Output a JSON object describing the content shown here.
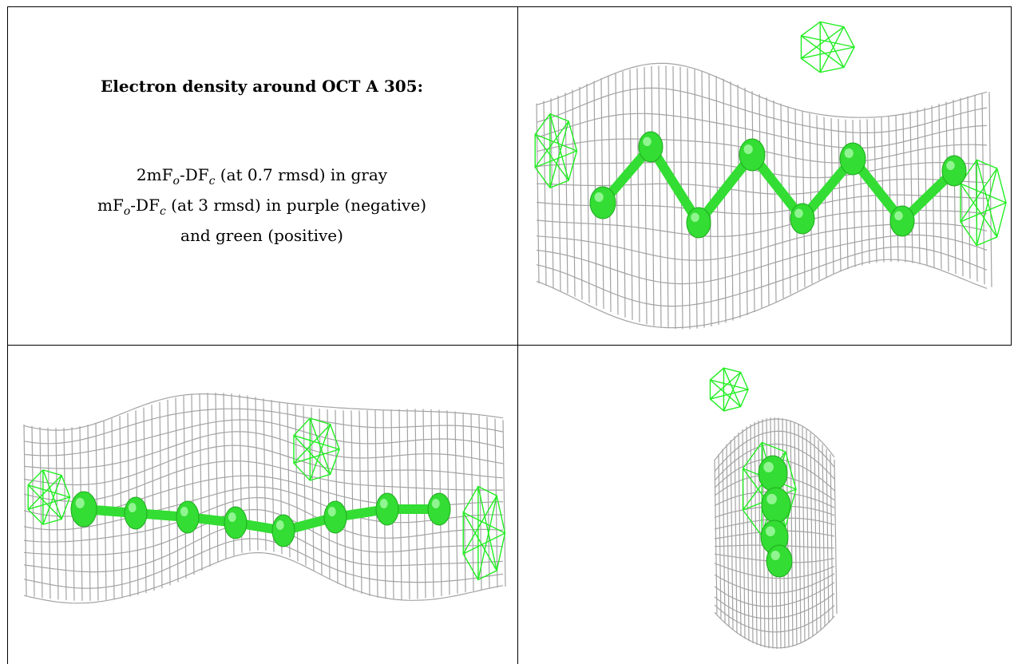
{
  "caption": {
    "title": "Electron density around OCT A 305:",
    "line1": {
      "pre": "2mF",
      "sub1": "o",
      "mid": "-DF",
      "sub2": "c",
      "post": " (at 0.7 rmsd) in gray"
    },
    "line2": {
      "pre": "mF",
      "sub1": "o",
      "mid": "-DF",
      "sub2": "c",
      "post": " (at 3 rmsd) in purple (negative)"
    },
    "line3": "and green (positive)"
  },
  "colors": {
    "mesh_gray": "#9a9a9a",
    "difference_positive": "#22ee22",
    "difference_negative": "#9b30c8",
    "atom_green": "#33dd33"
  },
  "panels": [
    {
      "name": "view-side-zigzag"
    },
    {
      "name": "view-front-linear"
    },
    {
      "name": "view-end-on"
    }
  ]
}
